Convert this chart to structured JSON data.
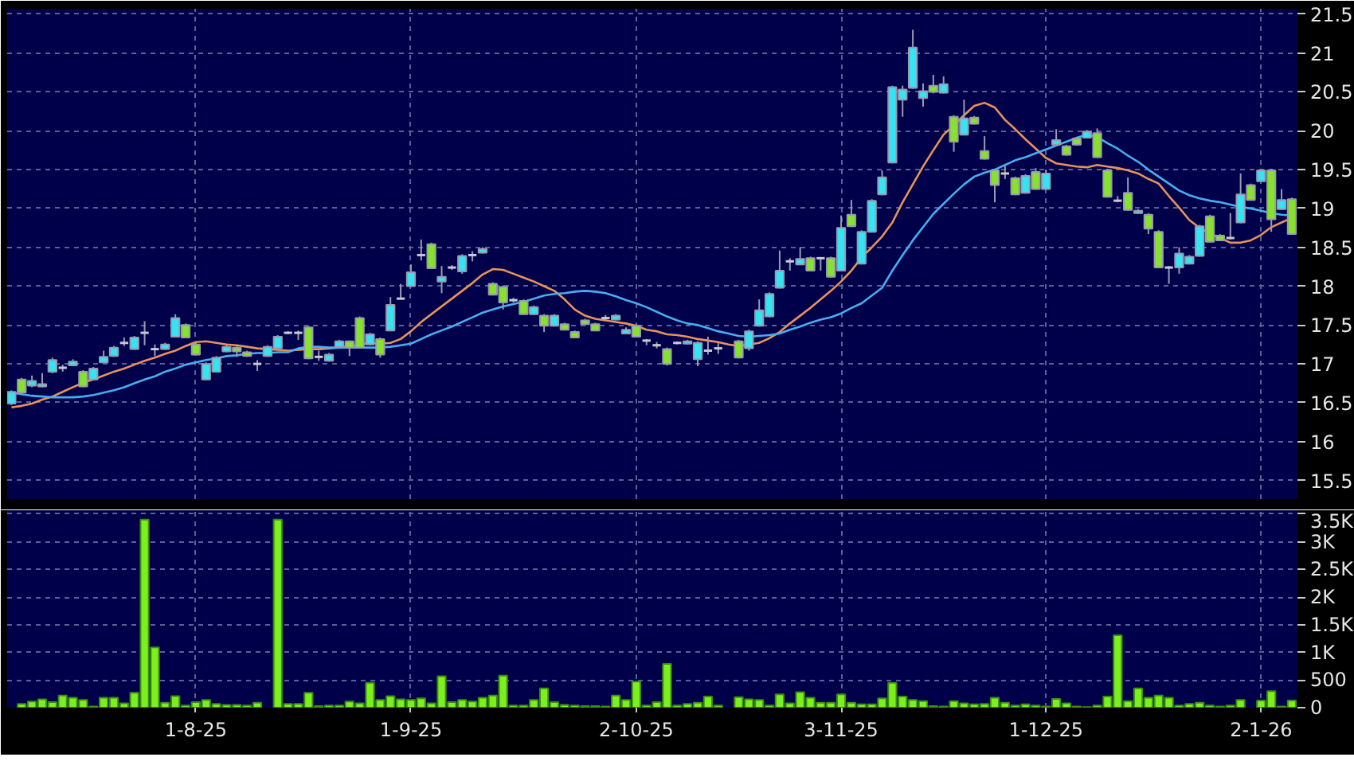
{
  "chart_data": [
    {
      "type": "candlestick",
      "categories": [
        null,
        null,
        null,
        null,
        null,
        null,
        null,
        null,
        null,
        null,
        null,
        null,
        null,
        null,
        null,
        null,
        null,
        null,
        null,
        null,
        null,
        null,
        null,
        null,
        null,
        null,
        null,
        null,
        null,
        null,
        null,
        null,
        null,
        null,
        null,
        null,
        null,
        null,
        null,
        null,
        null,
        null,
        null,
        null,
        null,
        null,
        null,
        null,
        null,
        null,
        null,
        null,
        null,
        null,
        null,
        null,
        null,
        null,
        null,
        null,
        null,
        null,
        null,
        null,
        null,
        null,
        null,
        null,
        null,
        null,
        null,
        null,
        null,
        null,
        null,
        null,
        null,
        null,
        null,
        null,
        null,
        null,
        null,
        null,
        null,
        null,
        null,
        null,
        null,
        null,
        null,
        null,
        null,
        null,
        null,
        null,
        null,
        null,
        null,
        null,
        null,
        null,
        null,
        null,
        null,
        null,
        null,
        null,
        null,
        null,
        null,
        null,
        null,
        null,
        null,
        null,
        null,
        null,
        null,
        null,
        null,
        null,
        null,
        null,
        null,
        null
      ],
      "ohlc": [
        [
          16.49,
          16.66,
          16.47,
          16.64
        ],
        [
          16.8,
          16.82,
          16.61,
          16.63
        ],
        [
          16.72,
          16.85,
          16.7,
          16.78
        ],
        [
          16.71,
          16.88,
          16.7,
          16.74
        ],
        [
          16.9,
          17.08,
          16.88,
          17.05
        ],
        [
          16.95,
          16.99,
          16.9,
          16.95
        ],
        [
          16.98,
          17.06,
          16.97,
          17.03
        ],
        [
          16.9,
          16.92,
          16.7,
          16.71
        ],
        [
          16.8,
          16.96,
          16.79,
          16.94
        ],
        [
          17.02,
          17.17,
          17.01,
          17.09
        ],
        [
          17.1,
          17.23,
          17.09,
          17.21
        ],
        [
          17.27,
          17.34,
          17.23,
          17.27
        ],
        [
          17.19,
          17.36,
          17.18,
          17.34
        ],
        [
          17.4,
          17.55,
          17.24,
          17.4
        ],
        [
          17.19,
          17.25,
          17.1,
          17.19
        ],
        [
          17.19,
          17.27,
          17.18,
          17.25
        ],
        [
          17.35,
          17.64,
          17.34,
          17.59
        ],
        [
          17.5,
          17.52,
          17.33,
          17.34
        ],
        [
          17.25,
          17.27,
          17.11,
          17.12
        ],
        [
          16.8,
          17.02,
          16.79,
          17.0
        ],
        [
          16.9,
          17.1,
          16.89,
          17.08
        ],
        [
          17.16,
          17.24,
          17.15,
          17.22
        ],
        [
          17.21,
          17.23,
          17.09,
          17.16
        ],
        [
          17.15,
          17.17,
          17.09,
          17.1
        ],
        [
          17.0,
          17.05,
          16.91,
          17.0
        ],
        [
          17.1,
          17.24,
          17.09,
          17.22
        ],
        [
          17.2,
          17.37,
          17.19,
          17.35
        ],
        [
          17.4,
          17.42,
          17.38,
          17.4
        ],
        [
          17.4,
          17.43,
          17.31,
          17.4
        ],
        [
          17.47,
          17.49,
          17.06,
          17.07
        ],
        [
          17.09,
          17.17,
          17.04,
          17.09
        ],
        [
          17.04,
          17.14,
          17.03,
          17.12
        ],
        [
          17.22,
          17.31,
          17.21,
          17.29
        ],
        [
          17.29,
          17.3,
          17.1,
          17.21
        ],
        [
          17.59,
          17.61,
          17.2,
          17.21
        ],
        [
          17.25,
          17.4,
          17.24,
          17.38
        ],
        [
          17.32,
          17.34,
          17.08,
          17.12
        ],
        [
          17.43,
          17.86,
          17.42,
          17.76
        ],
        [
          17.84,
          18.03,
          17.83,
          17.84
        ],
        [
          18.0,
          18.28,
          17.99,
          18.18
        ],
        [
          18.4,
          18.6,
          18.33,
          18.4
        ],
        [
          18.54,
          18.56,
          18.22,
          18.23
        ],
        [
          18.06,
          18.26,
          17.91,
          18.12
        ],
        [
          18.24,
          18.27,
          18.21,
          18.24
        ],
        [
          18.19,
          18.41,
          18.16,
          18.39
        ],
        [
          18.4,
          18.45,
          18.32,
          18.4
        ],
        [
          18.43,
          18.5,
          18.42,
          18.48
        ],
        [
          18.03,
          18.05,
          17.88,
          17.89
        ],
        [
          17.99,
          18.01,
          17.7,
          17.79
        ],
        [
          17.82,
          17.85,
          17.79,
          17.82
        ],
        [
          17.81,
          17.83,
          17.63,
          17.64
        ],
        [
          17.64,
          17.75,
          17.63,
          17.73
        ],
        [
          17.62,
          17.64,
          17.41,
          17.49
        ],
        [
          17.49,
          17.64,
          17.48,
          17.62
        ],
        [
          17.51,
          17.53,
          17.43,
          17.44
        ],
        [
          17.41,
          17.43,
          17.33,
          17.34
        ],
        [
          17.56,
          17.58,
          17.5,
          17.51
        ],
        [
          17.51,
          17.53,
          17.42,
          17.43
        ],
        [
          17.59,
          17.63,
          17.56,
          17.59
        ],
        [
          17.57,
          17.64,
          17.56,
          17.62
        ],
        [
          17.39,
          17.47,
          17.38,
          17.44
        ],
        [
          17.49,
          17.51,
          17.34,
          17.35
        ],
        [
          17.3,
          17.32,
          17.24,
          17.3
        ],
        [
          17.24,
          17.28,
          17.2,
          17.24
        ],
        [
          17.19,
          17.21,
          16.98,
          17.0
        ],
        [
          17.27,
          17.29,
          17.25,
          17.27
        ],
        [
          17.26,
          17.31,
          17.25,
          17.29
        ],
        [
          17.06,
          17.29,
          16.97,
          17.27
        ],
        [
          17.17,
          17.35,
          17.12,
          17.17
        ],
        [
          17.2,
          17.27,
          17.13,
          17.2
        ],
        null,
        [
          17.29,
          17.31,
          17.07,
          17.08
        ],
        [
          17.2,
          17.44,
          17.17,
          17.42
        ],
        [
          17.49,
          17.83,
          17.48,
          17.69
        ],
        [
          17.61,
          17.92,
          17.6,
          17.9
        ],
        [
          17.98,
          18.46,
          17.97,
          18.2
        ],
        [
          18.32,
          18.36,
          18.2,
          18.32
        ],
        [
          18.28,
          18.5,
          18.27,
          18.35
        ],
        [
          18.36,
          18.38,
          18.19,
          18.2
        ],
        [
          18.36,
          18.37,
          18.2,
          18.36
        ],
        [
          18.36,
          18.38,
          18.11,
          18.12
        ],
        [
          18.2,
          18.91,
          18.19,
          18.75
        ],
        [
          18.92,
          19.11,
          18.76,
          18.77
        ],
        [
          18.29,
          18.72,
          18.28,
          18.7
        ],
        [
          18.7,
          19.12,
          18.69,
          19.1
        ],
        [
          19.18,
          19.49,
          19.17,
          19.4
        ],
        [
          19.59,
          20.58,
          19.58,
          20.56
        ],
        [
          20.4,
          20.58,
          20.18,
          20.53
        ],
        [
          20.55,
          21.3,
          20.54,
          21.07
        ],
        [
          20.42,
          20.61,
          20.31,
          20.51
        ],
        [
          20.58,
          20.72,
          20.48,
          20.5
        ],
        [
          20.49,
          20.7,
          20.48,
          20.6
        ],
        [
          20.18,
          20.2,
          19.73,
          19.86
        ],
        [
          19.95,
          20.4,
          19.94,
          20.16
        ],
        [
          20.17,
          20.19,
          20.08,
          20.09
        ],
        [
          19.74,
          19.93,
          19.63,
          19.64
        ],
        [
          19.49,
          19.51,
          19.08,
          19.3
        ],
        [
          19.45,
          19.55,
          19.38,
          19.45
        ],
        [
          19.39,
          19.41,
          19.17,
          19.18
        ],
        [
          19.2,
          19.44,
          19.19,
          19.42
        ],
        [
          19.47,
          19.52,
          19.24,
          19.25
        ],
        [
          19.25,
          19.5,
          19.24,
          19.45
        ],
        [
          19.82,
          20.02,
          19.81,
          19.88
        ],
        [
          19.8,
          19.82,
          19.68,
          19.69
        ],
        [
          19.9,
          19.92,
          19.81,
          19.82
        ],
        [
          19.91,
          20.01,
          19.9,
          19.99
        ],
        [
          19.97,
          20.03,
          19.65,
          19.66
        ],
        [
          19.49,
          19.51,
          19.14,
          19.15
        ],
        [
          19.1,
          19.16,
          19.08,
          19.1
        ],
        [
          19.2,
          19.4,
          18.97,
          18.98
        ],
        [
          18.94,
          18.99,
          18.93,
          18.97
        ],
        [
          18.92,
          18.94,
          18.67,
          18.74
        ],
        [
          18.7,
          18.72,
          18.23,
          18.24
        ],
        [
          18.24,
          18.26,
          18.03,
          18.24
        ],
        [
          18.24,
          18.5,
          18.16,
          18.42
        ],
        [
          18.29,
          18.4,
          18.28,
          18.38
        ],
        [
          18.39,
          18.79,
          18.38,
          18.77
        ],
        [
          18.9,
          18.92,
          18.56,
          18.57
        ],
        [
          18.65,
          18.67,
          18.58,
          18.59
        ],
        [
          18.62,
          18.94,
          18.6,
          18.62
        ],
        [
          18.82,
          19.45,
          18.81,
          19.18
        ],
        [
          19.3,
          19.32,
          19.1,
          19.11
        ],
        [
          19.35,
          19.51,
          19.34,
          19.49
        ],
        [
          19.49,
          19.51,
          18.7,
          18.86
        ],
        [
          18.99,
          19.25,
          18.98,
          19.11
        ],
        [
          19.12,
          19.14,
          18.66,
          18.67
        ]
      ],
      "colors": [
        "#36e3f2",
        "#86e22c",
        "#36e3f2",
        "#36e3f2",
        "#36e3f2",
        "#c8c8d8",
        "#36e3f2",
        "#86e22c",
        "#36e3f2",
        "#36e3f2",
        "#36e3f2",
        "#c8c8d8",
        "#36e3f2",
        "#c8c8d8",
        "#c8c8d8",
        "#36e3f2",
        "#36e3f2",
        "#86e22c",
        "#86e22c",
        "#36e3f2",
        "#36e3f2",
        "#36e3f2",
        "#86e22c",
        "#86e22c",
        "#c8c8d8",
        "#36e3f2",
        "#36e3f2",
        "#c8c8d8",
        "#c8c8d8",
        "#86e22c",
        "#c8c8d8",
        "#36e3f2",
        "#36e3f2",
        "#86e22c",
        "#86e22c",
        "#36e3f2",
        "#86e22c",
        "#36e3f2",
        "#c8c8d8",
        "#36e3f2",
        "#c8c8d8",
        "#86e22c",
        "#36e3f2",
        "#c8c8d8",
        "#36e3f2",
        "#c8c8d8",
        "#36e3f2",
        "#86e22c",
        "#86e22c",
        "#c8c8d8",
        "#86e22c",
        "#36e3f2",
        "#86e22c",
        "#36e3f2",
        "#86e22c",
        "#86e22c",
        "#86e22c",
        "#86e22c",
        "#c8c8d8",
        "#36e3f2",
        "#36e3f2",
        "#86e22c",
        "#c8c8d8",
        "#c8c8d8",
        "#86e22c",
        "#c8c8d8",
        "#36e3f2",
        "#36e3f2",
        "#c8c8d8",
        "#c8c8d8",
        null,
        "#86e22c",
        "#36e3f2",
        "#36e3f2",
        "#36e3f2",
        "#36e3f2",
        "#c8c8d8",
        "#36e3f2",
        "#86e22c",
        "#c8c8d8",
        "#86e22c",
        "#36e3f2",
        "#86e22c",
        "#36e3f2",
        "#36e3f2",
        "#36e3f2",
        "#36e3f2",
        "#36e3f2",
        "#36e3f2",
        "#36e3f2",
        "#86e22c",
        "#36e3f2",
        "#86e22c",
        "#36e3f2",
        "#86e22c",
        "#86e22c",
        "#86e22c",
        "#c8c8d8",
        "#86e22c",
        "#36e3f2",
        "#86e22c",
        "#36e3f2",
        "#36e3f2",
        "#86e22c",
        "#86e22c",
        "#36e3f2",
        "#86e22c",
        "#86e22c",
        "#c8c8d8",
        "#86e22c",
        "#36e3f2",
        "#86e22c",
        "#86e22c",
        "#c8c8d8",
        "#36e3f2",
        "#36e3f2",
        "#36e3f2",
        "#86e22c",
        "#86e22c",
        "#c8c8d8",
        "#36e3f2",
        "#86e22c",
        "#36e3f2",
        "#86e22c",
        "#36e3f2",
        "#86e22c"
      ],
      "series": [
        {
          "type": "line",
          "color": "#e8925a",
          "values": [
            16.44,
            16.46,
            16.49,
            16.54,
            16.58,
            16.64,
            16.7,
            16.76,
            16.8,
            16.85,
            16.9,
            16.94,
            16.99,
            17.04,
            17.08,
            17.13,
            17.17,
            17.23,
            17.28,
            17.29,
            17.27,
            17.25,
            17.24,
            17.22,
            17.2,
            17.19,
            17.18,
            17.17,
            17.18,
            17.19,
            17.19,
            17.2,
            17.21,
            17.23,
            null,
            17.27,
            17.26,
            17.27,
            17.32,
            17.42,
            17.54,
            17.64,
            17.74,
            17.84,
            17.94,
            18.04,
            18.15,
            18.22,
            18.21,
            18.16,
            18.11,
            18.06,
            18.0,
            17.94,
            17.83,
            17.7,
            17.62,
            17.58,
            17.56,
            17.54,
            17.52,
            17.49,
            17.44,
            17.42,
            17.38,
            17.37,
            17.35,
            17.32,
            17.3,
            17.28,
            17.25,
            17.23,
            17.25,
            17.27,
            17.33,
            17.41,
            17.52,
            17.62,
            17.72,
            17.83,
            17.94,
            18.06,
            18.2,
            18.37,
            18.5,
            18.64,
            18.82,
            19.08,
            19.31,
            19.54,
            19.75,
            19.95,
            20.07,
            20.2,
            20.32,
            20.36,
            20.3,
            20.14,
            20.02,
            19.89,
            19.77,
            19.65,
            19.58,
            19.56,
            19.54,
            19.53,
            19.56,
            19.54,
            19.52,
            19.49,
            19.45,
            19.38,
            19.32,
            19.16,
            19.01,
            18.85,
            18.75,
            18.68,
            18.62,
            18.56,
            18.56,
            18.59,
            18.66,
            18.76,
            18.82,
            18.88
          ]
        },
        {
          "type": "line",
          "color": "#46aef0",
          "values": [
            16.63,
            16.61,
            16.59,
            16.58,
            16.57,
            16.57,
            16.57,
            16.58,
            16.6,
            16.63,
            16.66,
            16.7,
            16.75,
            16.8,
            16.84,
            16.9,
            16.94,
            16.99,
            17.02,
            17.05,
            17.07,
            17.1,
            17.11,
            17.13,
            17.14,
            17.14,
            17.15,
            17.15,
            17.2,
            17.22,
            17.22,
            17.21,
            17.21,
            17.21,
            17.21,
            17.21,
            17.21,
            17.22,
            17.24,
            17.26,
            17.32,
            17.38,
            17.43,
            17.48,
            17.54,
            17.6,
            17.66,
            17.7,
            17.74,
            17.77,
            17.8,
            17.84,
            17.88,
            17.9,
            17.91,
            17.93,
            17.94,
            17.93,
            17.91,
            17.87,
            17.82,
            17.78,
            17.73,
            17.67,
            17.61,
            17.56,
            17.52,
            17.5,
            17.46,
            17.42,
            17.39,
            17.36,
            17.35,
            17.36,
            17.37,
            17.39,
            17.44,
            17.48,
            17.53,
            17.57,
            17.6,
            17.65,
            17.72,
            17.78,
            17.88,
            17.98,
            18.2,
            18.4,
            18.59,
            18.76,
            18.93,
            19.06,
            19.19,
            19.31,
            19.41,
            19.46,
            19.5,
            19.56,
            19.62,
            19.66,
            19.71,
            19.76,
            19.81,
            19.86,
            19.91,
            19.95,
            19.92,
            19.84,
            19.77,
            19.68,
            19.6,
            19.5,
            19.41,
            19.32,
            19.23,
            19.17,
            19.13,
            19.1,
            19.08,
            19.05,
            19.02,
            19.0,
            18.97,
            18.94,
            18.92,
            18.91
          ]
        }
      ],
      "ylim": [
        15.26,
        21.57
      ],
      "yticks": [
        15.5,
        16,
        16.5,
        17,
        17.5,
        18,
        18.5,
        19,
        19.5,
        20,
        20.5,
        21,
        21.5
      ],
      "grid": true,
      "tick_labels": "y"
    },
    {
      "type": "bar",
      "color": "#7cf01c",
      "categories": [
        null,
        null,
        null,
        null,
        null,
        null,
        null,
        null,
        null,
        null,
        null,
        null,
        null,
        null,
        null,
        null,
        null,
        null,
        "1-8-25",
        null,
        null,
        null,
        null,
        null,
        null,
        null,
        null,
        null,
        null,
        null,
        null,
        null,
        null,
        null,
        null,
        null,
        null,
        null,
        null,
        "1-9-25",
        null,
        null,
        null,
        null,
        null,
        null,
        null,
        null,
        null,
        null,
        null,
        null,
        null,
        null,
        null,
        null,
        null,
        null,
        null,
        null,
        null,
        "2-10-25",
        null,
        null,
        null,
        null,
        null,
        null,
        null,
        null,
        null,
        null,
        null,
        null,
        null,
        null,
        null,
        null,
        null,
        null,
        null,
        "3-11-25",
        null,
        null,
        null,
        null,
        null,
        null,
        null,
        null,
        null,
        null,
        null,
        null,
        null,
        null,
        null,
        null,
        null,
        null,
        null,
        "1-12-25",
        null,
        null,
        null,
        null,
        null,
        null,
        null,
        null,
        null,
        null,
        null,
        null,
        null,
        null,
        null,
        null,
        null,
        null,
        null,
        null,
        "2-1-26",
        null,
        null,
        null
      ],
      "values": [
        null,
        70,
        110,
        150,
        100,
        220,
        180,
        140,
        20,
        180,
        180,
        80,
        270,
        3400,
        1090,
        90,
        210,
        40,
        100,
        140,
        70,
        50,
        50,
        40,
        90,
        null,
        3400,
        70,
        70,
        270,
        30,
        40,
        40,
        110,
        80,
        450,
        140,
        210,
        150,
        140,
        170,
        80,
        570,
        100,
        140,
        110,
        180,
        220,
        580,
        40,
        40,
        140,
        350,
        100,
        50,
        40,
        30,
        30,
        20,
        220,
        140,
        470,
        40,
        100,
        790,
        40,
        70,
        90,
        200,
        40,
        null,
        190,
        150,
        140,
        40,
        240,
        80,
        280,
        180,
        90,
        90,
        240,
        90,
        60,
        60,
        170,
        450,
        200,
        140,
        120,
        30,
        20,
        120,
        80,
        60,
        70,
        180,
        90,
        40,
        60,
        40,
        20,
        160,
        80,
        20,
        10,
        40,
        200,
        1310,
        120,
        350,
        180,
        220,
        180,
        40,
        70,
        90,
        40,
        20,
        40,
        140,
        null,
        130,
        300,
        20,
        130
      ],
      "ylim": [
        0,
        3570
      ],
      "yticks": [
        0,
        500,
        {
          "value": 1000,
          "label": "1K"
        },
        {
          "value": 1500,
          "label": "1.5K"
        },
        {
          "value": 2000,
          "label": "2K"
        },
        {
          "value": 2500,
          "label": "2.5K"
        },
        {
          "value": 3000,
          "label": "3K"
        },
        {
          "value": 3500,
          "label": "3.5K"
        }
      ],
      "grid": true
    }
  ]
}
